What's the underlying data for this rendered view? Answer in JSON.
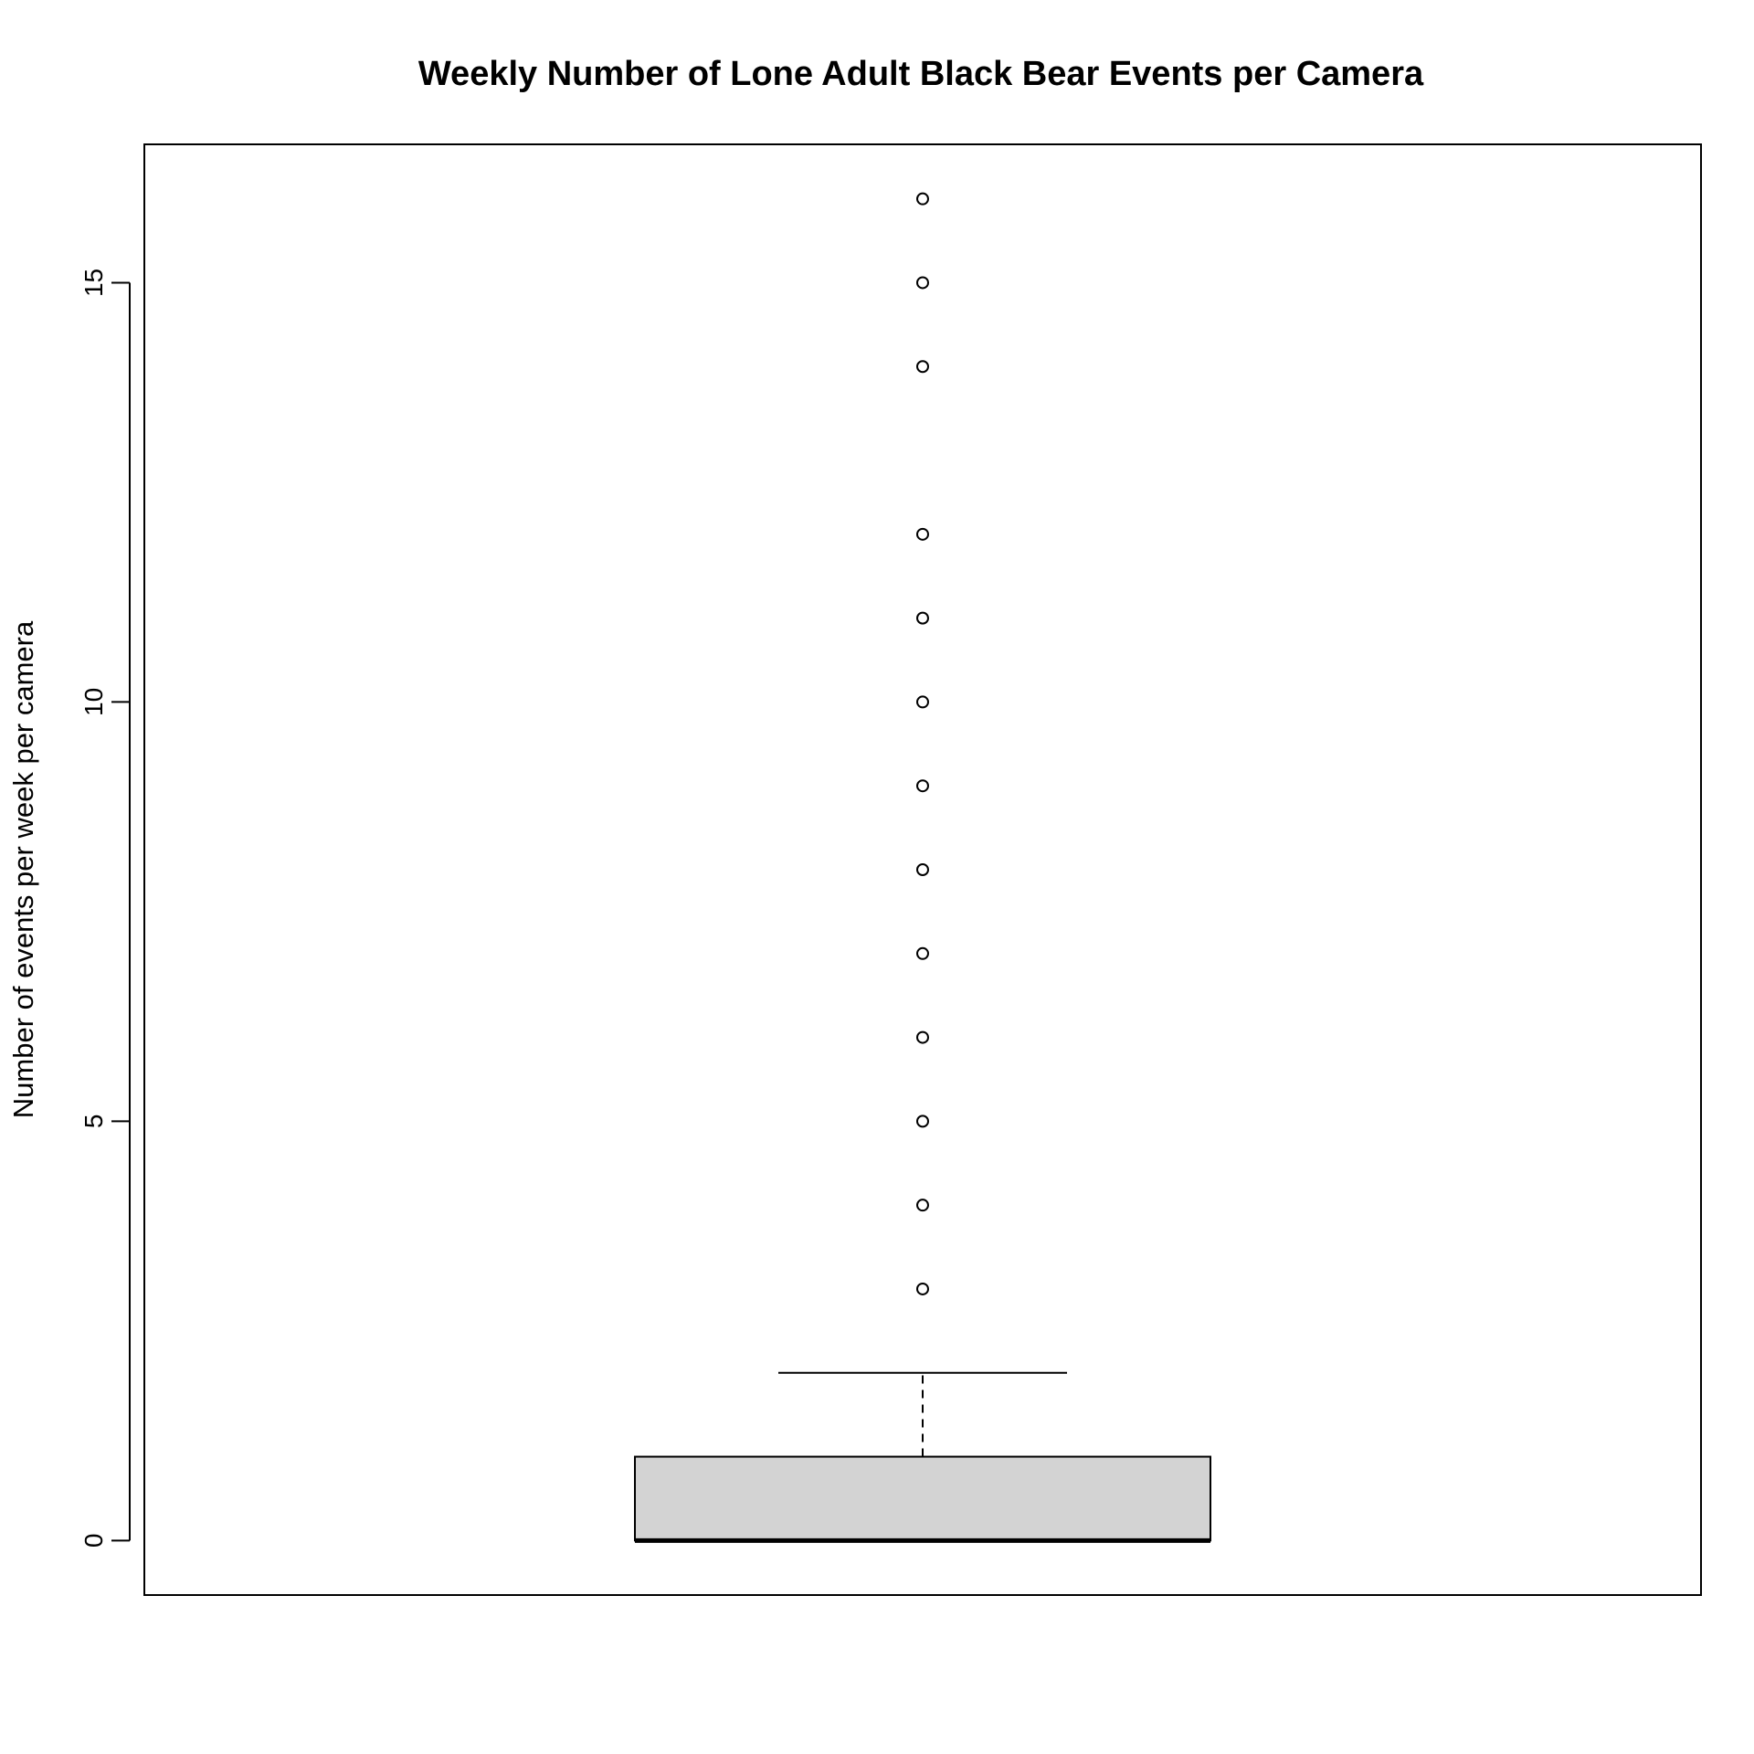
{
  "chart_data": {
    "type": "boxplot",
    "title": "Weekly Number of Lone Adult Black Bear Events per Camera",
    "xlabel": "",
    "ylabel": "Number of events per week per camera",
    "ylim": [
      -0.65,
      16.65
    ],
    "yticks": [
      0,
      5,
      10,
      15
    ],
    "ytick_labels": [
      "0",
      "5",
      "10",
      "15"
    ],
    "box": {
      "min": 0,
      "q1": 0,
      "median": 0,
      "q3": 1,
      "max": 2
    },
    "outliers": [
      3,
      4,
      5,
      6,
      7,
      8,
      9,
      10,
      11,
      12,
      14,
      15,
      16
    ],
    "box_fill": "#d3d3d3",
    "line_color": "#000000"
  }
}
